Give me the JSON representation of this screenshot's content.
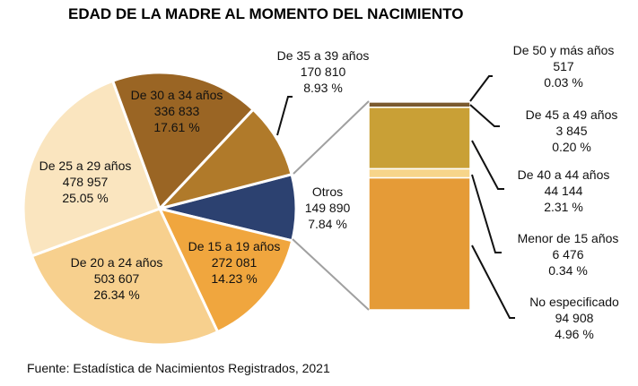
{
  "chart_data": {
    "type": "pie",
    "subtype": "bar-of-pie",
    "title": "Edad de la madre al momento del nacimiento",
    "source": "Fuente: Estadística de Nacimientos Registrados, 2021",
    "pie": [
      {
        "label": "Otros",
        "value": "149 890",
        "percent": "7.84 %",
        "pct": 7.84,
        "color": "#2C4170"
      },
      {
        "label": "De 15 a 19 años",
        "value": "272 081",
        "percent": "14.23 %",
        "pct": 14.23,
        "color": "#F0A63E"
      },
      {
        "label": "De 20 a 24 años",
        "value": "503 607",
        "percent": "26.34 %",
        "pct": 26.34,
        "color": "#F7D08E"
      },
      {
        "label": "De 25 a 29 años",
        "value": "478 957",
        "percent": "25.05 %",
        "pct": 25.05,
        "color": "#FAE5BF"
      },
      {
        "label": "De 30 a 34 años",
        "value": "336 833",
        "percent": "17.61 %",
        "pct": 17.61,
        "color": "#9A6524"
      },
      {
        "label": "De 35 a 39 años",
        "value": "170 810",
        "percent": "8.93 %",
        "pct": 8.93,
        "color": "#B07A2A"
      }
    ],
    "bar": [
      {
        "label": "De 50 y más años",
        "value": "517",
        "percent": "0.03 %",
        "pct": 0.03,
        "color": "#8C6A3C"
      },
      {
        "label": "De 45 a 49 años",
        "value": "3 845",
        "percent": "0.20 %",
        "pct": 0.2,
        "color": "#7A5A2E"
      },
      {
        "label": "De 40 a 44 años",
        "value": "44 144",
        "percent": "2.31 %",
        "pct": 2.31,
        "color": "#C9A036"
      },
      {
        "label": "Menor de 15 años",
        "value": "6 476",
        "percent": "0.34 %",
        "pct": 0.34,
        "color": "#F7D58A"
      },
      {
        "label": "No especificado",
        "value": "94 908",
        "percent": "4.96 %",
        "pct": 4.96,
        "color": "#E59B37"
      }
    ]
  }
}
